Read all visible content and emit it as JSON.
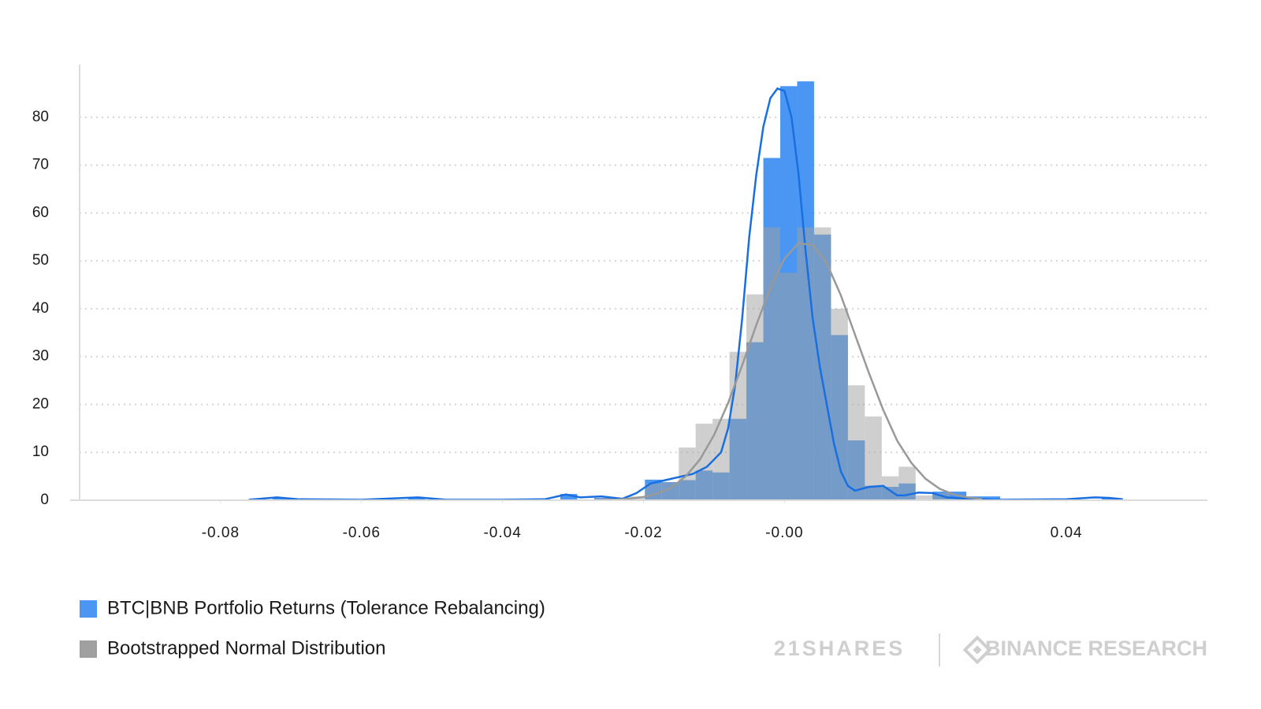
{
  "chart_data": {
    "type": "histogram",
    "bins": [
      -0.0726,
      -0.0702,
      -0.0678,
      -0.0654,
      -0.063,
      -0.0606,
      -0.0582,
      -0.0558,
      -0.0534,
      -0.051,
      -0.0486,
      -0.0462,
      -0.0438,
      -0.0414,
      -0.039,
      -0.0366,
      -0.0342,
      -0.0318,
      -0.0294,
      -0.027,
      -0.0246,
      -0.0222,
      -0.0198,
      -0.0174,
      -0.015,
      -0.0126,
      -0.0102,
      -0.0078,
      -0.0054,
      -0.003,
      -0.0006,
      0.0018,
      0.0042,
      0.0066,
      0.009,
      0.0114,
      0.0138,
      0.0162,
      0.0186,
      0.021,
      0.0234,
      0.0258,
      0.0282,
      0.0306,
      0.033,
      0.0354,
      0.0378,
      0.0402,
      0.0426,
      0.045,
      0.0474
    ],
    "series": [
      {
        "name": "BTC|BNB Portfolio Returns (Tolerance Rebalancing)",
        "color": "#4a96f2",
        "opacity": 1,
        "values": [
          0.5,
          0,
          0,
          0,
          0,
          0,
          0,
          0,
          0.5,
          0,
          0,
          0,
          0,
          0,
          0,
          0,
          0,
          1.3,
          0,
          0.5,
          0,
          0,
          4.3,
          3.8,
          4.2,
          6.2,
          5.8,
          17,
          33,
          71.5,
          86.5,
          87.5,
          55.5,
          34.5,
          12.5,
          3,
          2.8,
          3.5,
          0,
          1.8,
          1.8,
          0.8,
          0.8,
          0,
          0,
          0,
          0,
          0,
          0,
          0.5
        ],
        "kde": {
          "color": "#1a6fe0",
          "x": [
            -0.076,
            -0.072,
            -0.069,
            -0.06,
            -0.052,
            -0.048,
            -0.04,
            -0.034,
            -0.031,
            -0.029,
            -0.026,
            -0.023,
            -0.021,
            -0.019,
            -0.016,
            -0.013,
            -0.011,
            -0.009,
            -0.008,
            -0.007,
            -0.006,
            -0.005,
            -0.004,
            -0.003,
            -0.002,
            -0.001,
            0,
            0.001,
            0.002,
            0.003,
            0.004,
            0.005,
            0.006,
            0.007,
            0.008,
            0.009,
            0.01,
            0.012,
            0.014,
            0.016,
            0.017,
            0.019,
            0.021,
            0.023,
            0.026,
            0.03,
            0.04,
            0.044,
            0.046,
            0.048
          ],
          "values": [
            0.1,
            0.6,
            0.2,
            0.1,
            0.6,
            0.1,
            0.1,
            0.2,
            1.2,
            0.6,
            0.8,
            0.3,
            1.5,
            3.5,
            4.5,
            5.5,
            7,
            10,
            15,
            24,
            38,
            55,
            68,
            78,
            84,
            86,
            85.5,
            80,
            68,
            52,
            38,
            28,
            20,
            12,
            6,
            3,
            2,
            2.8,
            3,
            1,
            1,
            1.6,
            1.5,
            0.6,
            0.3,
            0.1,
            0.2,
            0.6,
            0.5,
            0.2
          ]
        }
      },
      {
        "name": "Bootstrapped Normal Distribution",
        "color": "#a0a0a0",
        "opacity": 0.5,
        "values": [
          0,
          0,
          0,
          0,
          0,
          0,
          0,
          0,
          0,
          0,
          0,
          0,
          0,
          0,
          0,
          0,
          0,
          0,
          0,
          0.5,
          0.5,
          0.8,
          3.5,
          3.8,
          11,
          16,
          17,
          31,
          43,
          57,
          47.5,
          57,
          57,
          40,
          24,
          17.5,
          5,
          7,
          1,
          1.5,
          0.5,
          0.5,
          0,
          0,
          0,
          0,
          0,
          0,
          0,
          0
        ],
        "kde": {
          "color": "#999999",
          "x": [
            -0.026,
            -0.024,
            -0.022,
            -0.02,
            -0.018,
            -0.016,
            -0.014,
            -0.012,
            -0.01,
            -0.008,
            -0.006,
            -0.004,
            -0.002,
            0,
            0.002,
            0.004,
            0.006,
            0.008,
            0.01,
            0.012,
            0.014,
            0.016,
            0.018,
            0.02,
            0.022,
            0.024,
            0.026,
            0.028
          ],
          "values": [
            0.05,
            0.13,
            0.3,
            0.68,
            1.4,
            2.7,
            5,
            8.5,
            13.6,
            20.3,
            28.2,
            36.6,
            44.4,
            50.5,
            53.7,
            53.3,
            49.5,
            42.8,
            34.6,
            26.5,
            18.9,
            12.4,
            7.8,
            4.5,
            2.4,
            1.2,
            0.6,
            0.25
          ]
        }
      }
    ],
    "xlim": [
      -0.1,
      0.06
    ],
    "xticks": [
      -0.08,
      -0.06,
      -0.04,
      -0.02,
      {
        "value": 0,
        "label": "-0.00"
      },
      0.04
    ],
    "ylim": [
      0,
      91
    ],
    "yticks": [
      0,
      10,
      20,
      30,
      40,
      50,
      60,
      70,
      80
    ],
    "grid": true,
    "legend": "bottom-left"
  },
  "logos": [
    "21SHARES",
    "BINANCE RESEARCH"
  ]
}
